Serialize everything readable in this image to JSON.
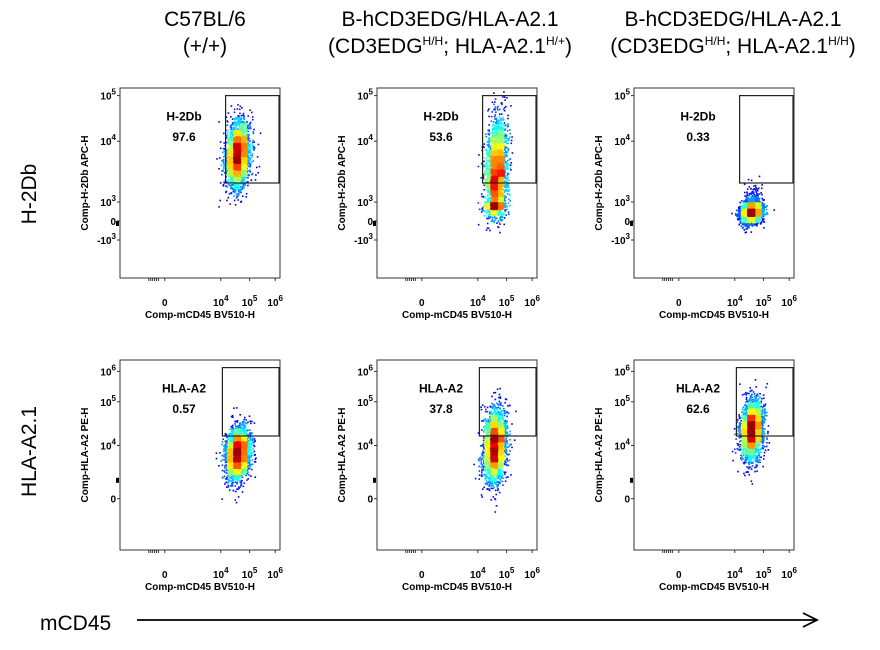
{
  "columns": [
    {
      "line1": "C57BL/6",
      "line2": "(+/+)",
      "sup1": "",
      "mid": "",
      "sup2": "",
      "end": ""
    },
    {
      "line1": "B-hCD3EDG/HLA-A2.1",
      "line2": "(CD3EDG",
      "sup1": "H/H",
      "mid": "; HLA-A2.1",
      "sup2": "H/+",
      "end": ")"
    },
    {
      "line1": "B-hCD3EDG/HLA-A2.1",
      "line2": "(CD3EDG",
      "sup1": "H/H",
      "mid": "; HLA-A2.1",
      "sup2": "H/H",
      "end": ")"
    }
  ],
  "rows": [
    {
      "label": "H-2Db"
    },
    {
      "label": "HLA-A2.1"
    }
  ],
  "bottom_axis_label": "mCD45",
  "chart_data": [
    {
      "type": "scatter",
      "title": "",
      "xlabel": "Comp-mCD45 BV510-H",
      "ylabel": "Comp-H-2Db APC-H",
      "x_ticks": [
        "0",
        "10^4",
        "10^5",
        "10^6"
      ],
      "y_ticks": [
        "10^5",
        "10^4",
        "10^3",
        "0",
        "-10^3"
      ],
      "gate": {
        "name": "H-2Db",
        "percent": "97.6"
      },
      "population": {
        "x_center_log": 4.6,
        "y_center_log": 3.9,
        "x_spread": 0.22,
        "y_spread": 0.35,
        "n": 2600
      }
    },
    {
      "type": "scatter",
      "title": "",
      "xlabel": "Comp-mCD45 BV510-H",
      "ylabel": "Comp-H-2Db APC-H",
      "x_ticks": [
        "0",
        "10^4",
        "10^5",
        "10^6"
      ],
      "y_ticks": [
        "10^5",
        "10^4",
        "10^3",
        "0",
        "-10^3"
      ],
      "gate": {
        "name": "H-2Db",
        "percent": "53.6"
      },
      "population": {
        "x_center_log": 4.65,
        "y_center_log": 3.5,
        "x_spread": 0.2,
        "y_spread": 0.6,
        "n": 2600
      }
    },
    {
      "type": "scatter",
      "title": "",
      "xlabel": "Comp-mCD45 BV510-H",
      "ylabel": "Comp-H-2Db APC-H",
      "x_ticks": [
        "0",
        "10^4",
        "10^5",
        "10^6"
      ],
      "y_ticks": [
        "10^5",
        "10^4",
        "10^3",
        "0",
        "-10^3"
      ],
      "gate": {
        "name": "H-2Db",
        "percent": "0.33"
      },
      "population": {
        "x_center_log": 4.6,
        "y_center_log": 2.6,
        "x_spread": 0.2,
        "y_spread": 0.3,
        "n": 2400
      }
    },
    {
      "type": "scatter",
      "title": "",
      "xlabel": "Comp-mCD45 BV510-H",
      "ylabel": "Comp-HLA-A2 PE-H",
      "x_ticks": [
        "0",
        "10^4",
        "10^5",
        "10^6"
      ],
      "y_ticks": [
        "10^6",
        "10^5",
        "10^4",
        "0"
      ],
      "gate": {
        "name": "HLA-A2",
        "percent": "0.57"
      },
      "population": {
        "x_center_log": 4.6,
        "y_center_log": 3.8,
        "x_spread": 0.22,
        "y_spread": 0.4,
        "n": 2600
      }
    },
    {
      "type": "scatter",
      "title": "",
      "xlabel": "Comp-mCD45 BV510-H",
      "ylabel": "Comp-HLA-A2 PE-H",
      "x_ticks": [
        "0",
        "10^4",
        "10^5",
        "10^6"
      ],
      "y_ticks": [
        "10^6",
        "10^5",
        "10^4",
        "0"
      ],
      "gate": {
        "name": "HLA-A2",
        "percent": "37.8"
      },
      "population": {
        "x_center_log": 4.6,
        "y_center_log": 4.0,
        "x_spread": 0.2,
        "y_spread": 0.55,
        "n": 2600
      }
    },
    {
      "type": "scatter",
      "title": "",
      "xlabel": "Comp-mCD45 BV510-H",
      "ylabel": "Comp-HLA-A2 PE-H",
      "x_ticks": [
        "0",
        "10^4",
        "10^5",
        "10^6"
      ],
      "y_ticks": [
        "10^6",
        "10^5",
        "10^4",
        "0"
      ],
      "gate": {
        "name": "HLA-A2",
        "percent": "62.6"
      },
      "population": {
        "x_center_log": 4.6,
        "y_center_log": 4.45,
        "x_spread": 0.2,
        "y_spread": 0.45,
        "n": 2600
      }
    }
  ]
}
